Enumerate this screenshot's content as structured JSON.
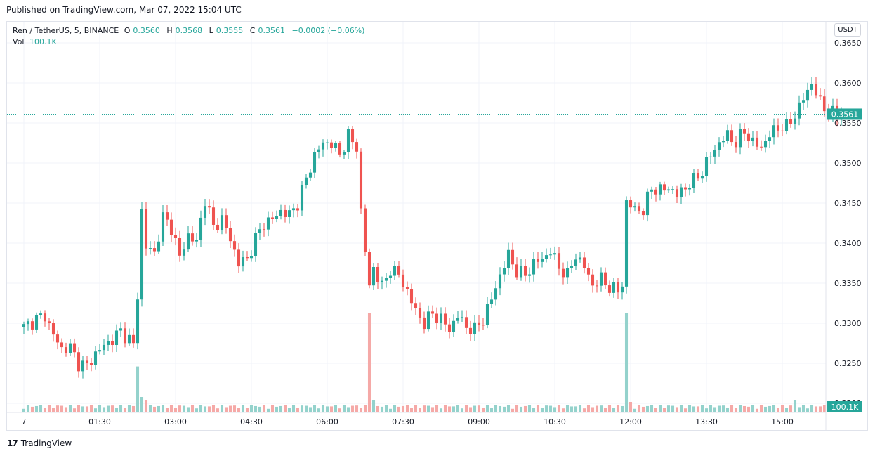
{
  "published": "Published on TradingView.com, Mar 07, 2022 15:04 UTC",
  "legend": {
    "symbol": "Ren / TetherUS, 5, BINANCE",
    "o_label": "O",
    "o": "0.3560",
    "h_label": "H",
    "h": "0.3568",
    "l_label": "L",
    "l": "0.3555",
    "c_label": "C",
    "c": "0.3561",
    "change": "−0.0002 (−0.06%)",
    "vol_label": "Vol",
    "vol": "100.1K"
  },
  "currency": "USDT",
  "footer": {
    "brand": "TradingView",
    "mark": "17"
  },
  "chart_data": {
    "type": "candlestick",
    "price_axis": {
      "ticks": [
        "0.3650",
        "0.3600",
        "0.3550",
        "0.3500",
        "0.3450",
        "0.3400",
        "0.3350",
        "0.3300",
        "0.3250",
        "0.3200"
      ],
      "ylim": [
        0.32,
        0.366
      ]
    },
    "time_axis": {
      "ticks": [
        "7",
        "01:30",
        "03:00",
        "04:30",
        "06:00",
        "07:30",
        "09:00",
        "10:30",
        "12:00",
        "13:30",
        "15:00"
      ],
      "tick_minutes": [
        0,
        90,
        180,
        270,
        360,
        450,
        540,
        630,
        720,
        810,
        900
      ],
      "bar_minutes": 5
    },
    "last_price": "0.3561",
    "last_price_value": 0.3561,
    "last_volume": "100.1K",
    "colors": {
      "up": "#26a69a",
      "down": "#ef5350",
      "vol_up": "#94d2cc",
      "vol_down": "#f5a9a7",
      "grid": "#f0f3fa"
    },
    "keypoints": [
      [
        0,
        0.3295
      ],
      [
        2,
        0.3302
      ],
      [
        5,
        0.331
      ],
      [
        7,
        0.3285
      ],
      [
        9,
        0.3268
      ],
      [
        11,
        0.327
      ],
      [
        13,
        0.325
      ],
      [
        15,
        0.3246
      ],
      [
        17,
        0.3262
      ],
      [
        19,
        0.3272
      ],
      [
        21,
        0.328
      ],
      [
        23,
        0.329
      ],
      [
        25,
        0.328
      ],
      [
        26,
        0.3272
      ],
      [
        27,
        0.3335
      ],
      [
        28,
        0.344
      ],
      [
        29,
        0.3395
      ],
      [
        31,
        0.3388
      ],
      [
        33,
        0.3432
      ],
      [
        35,
        0.342
      ],
      [
        37,
        0.3382
      ],
      [
        39,
        0.341
      ],
      [
        41,
        0.34
      ],
      [
        42,
        0.343
      ],
      [
        43,
        0.3455
      ],
      [
        45,
        0.342
      ],
      [
        47,
        0.343
      ],
      [
        49,
        0.3405
      ],
      [
        51,
        0.3375
      ],
      [
        53,
        0.338
      ],
      [
        55,
        0.3405
      ],
      [
        57,
        0.3425
      ],
      [
        59,
        0.343
      ],
      [
        61,
        0.344
      ],
      [
        63,
        0.3435
      ],
      [
        65,
        0.345
      ],
      [
        67,
        0.348
      ],
      [
        69,
        0.351
      ],
      [
        71,
        0.3525
      ],
      [
        73,
        0.3525
      ],
      [
        75,
        0.351
      ],
      [
        77,
        0.3535
      ],
      [
        78,
        0.3525
      ],
      [
        79,
        0.352
      ],
      [
        80,
        0.344
      ],
      [
        81,
        0.339
      ],
      [
        82,
        0.3345
      ],
      [
        83,
        0.337
      ],
      [
        85,
        0.3345
      ],
      [
        87,
        0.3368
      ],
      [
        89,
        0.336
      ],
      [
        91,
        0.334
      ],
      [
        93,
        0.3315
      ],
      [
        95,
        0.33
      ],
      [
        97,
        0.3312
      ],
      [
        99,
        0.3305
      ],
      [
        101,
        0.3292
      ],
      [
        103,
        0.331
      ],
      [
        105,
        0.3295
      ],
      [
        107,
        0.3292
      ],
      [
        109,
        0.3305
      ],
      [
        111,
        0.333
      ],
      [
        113,
        0.336
      ],
      [
        115,
        0.3385
      ],
      [
        117,
        0.3365
      ],
      [
        119,
        0.336
      ],
      [
        121,
        0.3375
      ],
      [
        123,
        0.338
      ],
      [
        125,
        0.339
      ],
      [
        127,
        0.337
      ],
      [
        129,
        0.336
      ],
      [
        131,
        0.3385
      ],
      [
        133,
        0.337
      ],
      [
        135,
        0.3348
      ],
      [
        137,
        0.3355
      ],
      [
        139,
        0.3345
      ],
      [
        141,
        0.334
      ],
      [
        142,
        0.335
      ],
      [
        143,
        0.345
      ],
      [
        145,
        0.3443
      ],
      [
        147,
        0.344
      ],
      [
        149,
        0.347
      ],
      [
        151,
        0.3465
      ],
      [
        153,
        0.347
      ],
      [
        155,
        0.346
      ],
      [
        157,
        0.347
      ],
      [
        159,
        0.3478
      ],
      [
        161,
        0.349
      ],
      [
        163,
        0.351
      ],
      [
        165,
        0.3525
      ],
      [
        167,
        0.3535
      ],
      [
        169,
        0.3525
      ],
      [
        171,
        0.354
      ],
      [
        173,
        0.3525
      ],
      [
        175,
        0.352
      ],
      [
        177,
        0.3535
      ],
      [
        179,
        0.3545
      ],
      [
        181,
        0.3545
      ],
      [
        183,
        0.356
      ],
      [
        185,
        0.358
      ],
      [
        187,
        0.36
      ],
      [
        189,
        0.3575
      ],
      [
        191,
        0.3565
      ],
      [
        193,
        0.3558
      ],
      [
        194,
        0.3561
      ]
    ],
    "volume_spikes": {
      "27": 0.46,
      "28": 0.15,
      "29": 0.12,
      "82": 1.0,
      "83": 0.12,
      "143": 1.0,
      "144": 0.1,
      "183": 0.12
    }
  }
}
